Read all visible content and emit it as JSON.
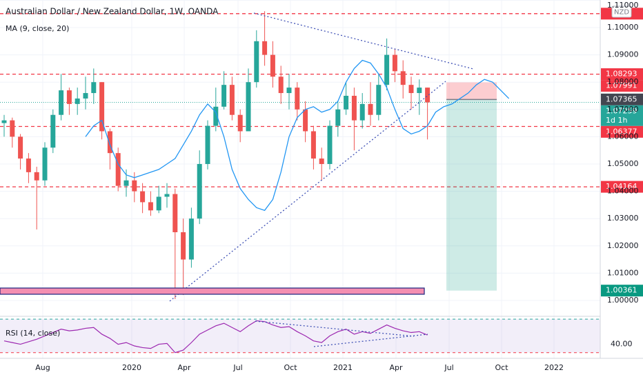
{
  "chart_data": {
    "type": "candlestick",
    "title": "Australian Dollar / New Zealand Dollar, 1W, OANDA",
    "currency": "NZD",
    "up_color": "#26a69a",
    "down_color": "#ef5350",
    "grid": true,
    "ylim": [
      0.9952,
      1.1101
    ],
    "yticks": [
      {
        "value": 1.0,
        "label": "1.00000"
      },
      {
        "value": 1.01,
        "label": "1.01000"
      },
      {
        "value": 1.02,
        "label": "1.02000"
      },
      {
        "value": 1.03,
        "label": "1.03000"
      },
      {
        "value": 1.04,
        "label": "1.04000"
      },
      {
        "value": 1.05,
        "label": "1.05000"
      },
      {
        "value": 1.06,
        "label": "1.06000"
      },
      {
        "value": 1.07,
        "label": "1.07000"
      },
      {
        "value": 1.08,
        "label": "1.08000"
      },
      {
        "value": 1.09,
        "label": "1.09000"
      },
      {
        "value": 1.1,
        "label": "1.10000"
      },
      {
        "value": 1.11,
        "label": "1.11000"
      }
    ],
    "time_labels": [
      "Aug",
      "2020",
      "Apr",
      "Jul",
      "Oct",
      "2021",
      "Apr",
      "Jul",
      "Oct",
      "2022"
    ],
    "open": [
      1.065,
      1.066,
      1.06,
      1.052,
      1.047,
      1.044,
      1.056,
      1.068,
      1.077,
      1.072,
      1.074,
      1.076,
      1.08,
      1.062,
      1.054,
      1.042,
      1.044,
      1.04,
      1.036,
      1.033,
      1.038,
      1.039,
      1.025,
      1.015,
      1.03,
      1.05,
      1.064,
      1.071,
      1.079,
      1.068,
      1.062,
      1.08,
      1.095,
      1.09,
      1.082,
      1.076,
      1.078,
      1.07,
      1.062,
      1.052,
      1.05,
      1.064,
      1.07,
      1.075,
      1.066,
      1.072,
      1.068,
      1.079,
      1.09,
      1.084,
      1.079,
      1.076,
      1.078
    ],
    "high": [
      1.068,
      1.067,
      1.061,
      1.054,
      1.049,
      1.058,
      1.07,
      1.083,
      1.078,
      1.078,
      1.082,
      1.085,
      1.08,
      1.063,
      1.056,
      1.048,
      1.047,
      1.043,
      1.04,
      1.042,
      1.043,
      1.041,
      1.03,
      1.034,
      1.055,
      1.066,
      1.078,
      1.084,
      1.082,
      1.07,
      1.085,
      1.099,
      1.106,
      1.095,
      1.086,
      1.083,
      1.08,
      1.073,
      1.064,
      1.056,
      1.066,
      1.073,
      1.08,
      1.078,
      1.076,
      1.08,
      1.083,
      1.096,
      1.092,
      1.088,
      1.082,
      1.081,
      1.078
    ],
    "low": [
      1.06,
      1.056,
      1.048,
      1.043,
      1.026,
      1.042,
      1.054,
      1.066,
      1.068,
      1.068,
      1.07,
      1.072,
      1.059,
      1.048,
      1.04,
      1.038,
      1.036,
      1.032,
      1.031,
      1.032,
      1.034,
      1.0005,
      1.002,
      1.012,
      1.028,
      1.048,
      1.062,
      1.07,
      1.066,
      1.058,
      1.062,
      1.078,
      1.086,
      1.078,
      1.072,
      1.07,
      1.066,
      1.058,
      1.048,
      1.044,
      1.048,
      1.06,
      1.068,
      1.055,
      1.063,
      1.064,
      1.066,
      1.077,
      1.08,
      1.074,
      1.07,
      1.068,
      1.059
    ],
    "close": [
      1.066,
      1.06,
      1.052,
      1.047,
      1.044,
      1.056,
      1.068,
      1.077,
      1.072,
      1.074,
      1.076,
      1.08,
      1.062,
      1.054,
      1.042,
      1.044,
      1.04,
      1.036,
      1.033,
      1.038,
      1.039,
      1.025,
      1.015,
      1.03,
      1.05,
      1.064,
      1.071,
      1.079,
      1.068,
      1.062,
      1.08,
      1.095,
      1.09,
      1.082,
      1.076,
      1.078,
      1.07,
      1.062,
      1.052,
      1.05,
      1.064,
      1.07,
      1.075,
      1.066,
      1.072,
      1.068,
      1.079,
      1.09,
      1.084,
      1.079,
      1.076,
      1.078,
      1.07259
    ],
    "ma": {
      "name": "MA (9, close, 20)",
      "color": "#2196f3",
      "values": [
        null,
        null,
        null,
        null,
        null,
        null,
        null,
        null,
        null,
        null,
        1.06,
        1.064,
        1.066,
        1.057,
        1.05,
        1.046,
        1.045,
        1.046,
        1.047,
        1.048,
        1.05,
        1.052,
        1.057,
        1.062,
        1.068,
        1.072,
        1.069,
        1.06,
        1.048,
        1.041,
        1.037,
        1.034,
        1.033,
        1.037,
        1.047,
        1.06,
        1.067,
        1.07,
        1.071,
        1.069,
        1.07,
        1.073,
        1.08,
        1.085,
        1.088,
        1.087,
        1.083,
        1.078,
        1.07,
        1.063,
        1.061,
        1.062,
        1.064,
        1.069,
        1.071,
        1.072,
        1.074,
        1.076,
        1.079,
        1.081,
        1.08,
        1.077,
        1.074
      ]
    },
    "levels": [
      1.1051,
      1.08293,
      1.06377,
      1.04164
    ],
    "level_color": "#f23645",
    "position": {
      "stop": 1.07991,
      "entry": 1.07365,
      "target": 1.00361
    },
    "price_tags": [
      {
        "value": 1.08293,
        "color": "#f23645"
      },
      {
        "value": 1.07991,
        "color": "#f23645"
      },
      {
        "value": 1.07365,
        "color": "#434651"
      },
      {
        "value": 1.07259,
        "color": "#26a69a",
        "countdown": "1d 1h"
      },
      {
        "value": 1.06377,
        "color": "#f23645"
      },
      {
        "value": 1.04164,
        "color": "#f23645"
      },
      {
        "value": 1.00361,
        "color": "#089981"
      }
    ],
    "rsi": {
      "name": "RSI (14, close)",
      "color": "#9c27b0",
      "ylim": [
        23.2,
        71.7
      ],
      "yticks": [
        {
          "value": 40,
          "label": "40.00"
        }
      ],
      "bands": [
        70,
        30
      ],
      "values": [
        44,
        42,
        40,
        43,
        46,
        50,
        54,
        58,
        56,
        57,
        59,
        60,
        52,
        47,
        40,
        42,
        38,
        36,
        35,
        40,
        41,
        30,
        33,
        42,
        52,
        57,
        62,
        65,
        60,
        55,
        62,
        68,
        67,
        63,
        60,
        61,
        55,
        50,
        44,
        42,
        50,
        55,
        58,
        52,
        55,
        53,
        58,
        63,
        59,
        56,
        54,
        55,
        51
      ]
    }
  }
}
